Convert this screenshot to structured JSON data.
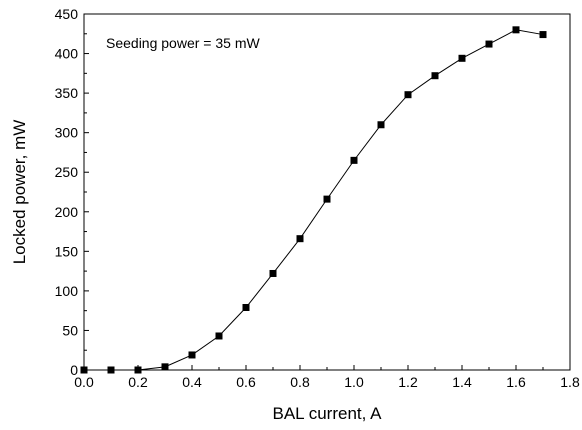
{
  "chart_data": {
    "type": "line",
    "xlabel": "BAL current, A",
    "ylabel": "Locked power, mW",
    "annotation": "Seeding power = 35 mW",
    "xlim": [
      0.0,
      1.8
    ],
    "ylim": [
      0,
      450
    ],
    "xticks": [
      "0.0",
      "0.2",
      "0.4",
      "0.6",
      "0.8",
      "1.0",
      "1.2",
      "1.4",
      "1.6",
      "1.8"
    ],
    "yticks": [
      "0",
      "50",
      "100",
      "150",
      "200",
      "250",
      "300",
      "350",
      "400",
      "450"
    ],
    "grid": false,
    "marker": "square",
    "series": [
      {
        "x": [
          0.0,
          0.1,
          0.2,
          0.3,
          0.4,
          0.5,
          0.6,
          0.7,
          0.8,
          0.9,
          1.0,
          1.1,
          1.2,
          1.3,
          1.4,
          1.5,
          1.6,
          1.7
        ],
        "y": [
          0,
          0,
          0,
          4,
          19,
          43,
          79,
          122,
          166,
          216,
          265,
          310,
          348,
          372,
          394,
          412,
          430,
          424
        ]
      }
    ],
    "colors": {
      "line": "#000000",
      "marker": "#000000",
      "axis": "#000000"
    }
  }
}
